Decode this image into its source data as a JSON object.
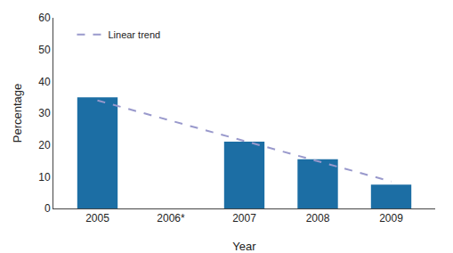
{
  "chart_data": {
    "type": "bar",
    "categories": [
      "2005",
      "2006*",
      "2007",
      "2008",
      "2009"
    ],
    "values": [
      35,
      null,
      21,
      15.5,
      7.5
    ],
    "color": "#1c6ea4",
    "series": [
      {
        "name": "Linear trend",
        "type": "line",
        "line_style": "dashed",
        "color": "#9999cc",
        "x": [
          "2005",
          "2009"
        ],
        "values": [
          34.0,
          8.5
        ]
      }
    ],
    "xlabel": "Year",
    "ylabel": "Percentage",
    "ylim": [
      0,
      60
    ],
    "yticks": [
      0,
      10,
      20,
      30,
      40,
      50,
      60
    ],
    "grid": false,
    "legend": "upper left"
  }
}
